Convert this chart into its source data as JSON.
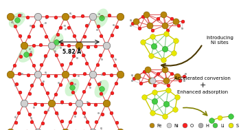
{
  "figsize": [
    3.51,
    1.89
  ],
  "dpi": 100,
  "fe_color": "#b8860b",
  "ni_color": "#d0d0d0",
  "o_color": "#ff2020",
  "h_color": "#aaaaaa",
  "li_color": "#44cc44",
  "s_color": "#e8e800",
  "bond_color": "#dd6666",
  "legend_items": [
    {
      "label": "Fe",
      "color": "#b8860b"
    },
    {
      "label": "Ni",
      "color": "#d0d0d0"
    },
    {
      "label": "O",
      "color": "#ff2020"
    },
    {
      "label": "H",
      "color": "#aaaaaa"
    },
    {
      "label": "Li",
      "color": "#44cc44"
    },
    {
      "label": "S",
      "color": "#e8e800"
    }
  ],
  "text_enhanced": "Enhanced adsorption",
  "text_plus": "+",
  "text_accel": "Accelerated conversion",
  "text_intro": "Introducing\nNi sites",
  "text_dist": "5.82 Å",
  "background": "white"
}
